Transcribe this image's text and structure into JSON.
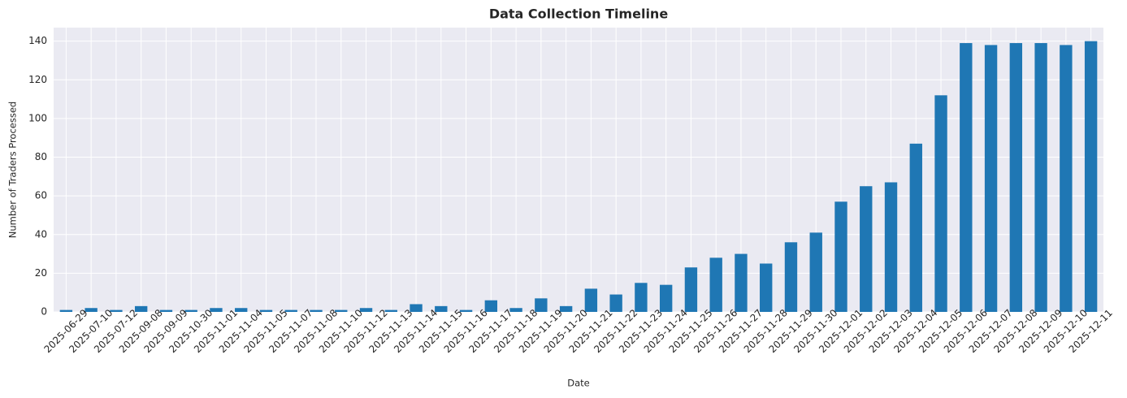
{
  "chart_data": {
    "type": "bar",
    "title": "Data Collection Timeline",
    "x_label": "Date",
    "y_label": "Number of Traders Processed",
    "categories": [
      "2025-06-29",
      "2025-07-10",
      "2025-07-12",
      "2025-09-08",
      "2025-09-09",
      "2025-10-30",
      "2025-11-01",
      "2025-11-04",
      "2025-11-05",
      "2025-11-07",
      "2025-11-08",
      "2025-11-10",
      "2025-11-12",
      "2025-11-13",
      "2025-11-14",
      "2025-11-15",
      "2025-11-16",
      "2025-11-17",
      "2025-11-18",
      "2025-11-19",
      "2025-11-20",
      "2025-11-21",
      "2025-11-22",
      "2025-11-23",
      "2025-11-24",
      "2025-11-25",
      "2025-11-26",
      "2025-11-27",
      "2025-11-28",
      "2025-11-29",
      "2025-11-30",
      "2025-12-01",
      "2025-12-02",
      "2025-12-03",
      "2025-12-04",
      "2025-12-05",
      "2025-12-06",
      "2025-12-07",
      "2025-12-08",
      "2025-12-09",
      "2025-12-10",
      "2025-12-11"
    ],
    "values": [
      1,
      2,
      1,
      3,
      1,
      1,
      2,
      2,
      1,
      1,
      1,
      1,
      2,
      1,
      4,
      3,
      1,
      6,
      2,
      7,
      3,
      12,
      9,
      15,
      14,
      23,
      28,
      30,
      25,
      36,
      41,
      57,
      65,
      67,
      87,
      112,
      139,
      138,
      139,
      139,
      138,
      140
    ],
    "color": "#1f77b4",
    "ylim": [
      0,
      147
    ],
    "yticks": [
      0,
      20,
      40,
      60,
      80,
      100,
      120,
      140
    ],
    "grid": true
  }
}
